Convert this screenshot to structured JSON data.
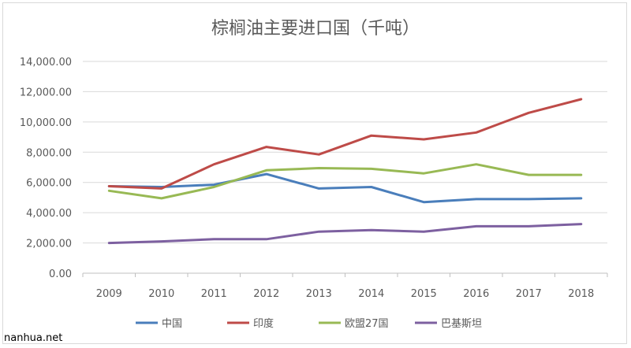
{
  "chart_data": {
    "type": "line",
    "title": "棕榈油主要进口国（千吨）",
    "categories": [
      "2009",
      "2010",
      "2011",
      "2012",
      "2013",
      "2014",
      "2015",
      "2016",
      "2017",
      "2018"
    ],
    "ylim": [
      0,
      14000
    ],
    "yticks": [
      "0.00",
      "2,000.00",
      "4,000.00",
      "6,000.00",
      "8,000.00",
      "10,000.00",
      "12,000.00",
      "14,000.00"
    ],
    "ytick_values": [
      0,
      2000,
      4000,
      6000,
      8000,
      10000,
      12000,
      14000
    ],
    "grid": true,
    "legend_position": "bottom",
    "series": [
      {
        "name": "中国",
        "color": "#4a7ebb",
        "values": [
          5750,
          5700,
          5850,
          6550,
          5600,
          5700,
          4700,
          4900,
          4900,
          4950
        ]
      },
      {
        "name": "印度",
        "color": "#be4b48",
        "values": [
          5750,
          5600,
          7200,
          8350,
          7850,
          9100,
          8850,
          9300,
          10600,
          11500
        ]
      },
      {
        "name": "欧盟27国",
        "color": "#98b954",
        "values": [
          5450,
          4950,
          5700,
          6800,
          6950,
          6900,
          6600,
          7200,
          6500,
          6500
        ]
      },
      {
        "name": "巴基斯坦",
        "color": "#7d60a0",
        "values": [
          2000,
          2100,
          2250,
          2250,
          2750,
          2850,
          2750,
          3100,
          3100,
          3250
        ]
      }
    ]
  },
  "watermark": "nanhua.net"
}
